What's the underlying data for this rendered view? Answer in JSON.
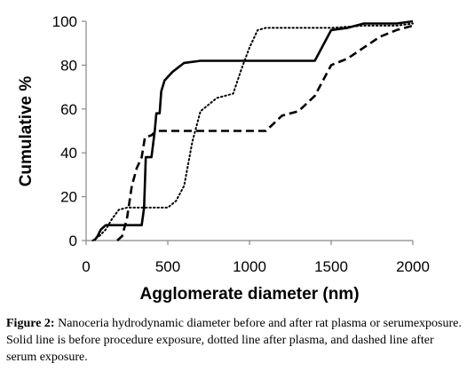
{
  "chart_data": {
    "type": "line",
    "title": "",
    "xlabel": "Agglomerate diameter (nm)",
    "ylabel": "Cumulative %",
    "xlim": [
      0,
      2000
    ],
    "ylim": [
      0,
      100
    ],
    "x_ticks": [
      "0",
      "500",
      "1000",
      "1500",
      "2000"
    ],
    "y_ticks": [
      "0",
      "20",
      "40",
      "60",
      "80",
      "100"
    ],
    "grid": false,
    "legend": "none",
    "series": [
      {
        "style": "solid",
        "color": "#000000",
        "points": [
          [
            50,
            0
          ],
          [
            70,
            2
          ],
          [
            90,
            5
          ],
          [
            120,
            7
          ],
          [
            160,
            7
          ],
          [
            200,
            7
          ],
          [
            250,
            7
          ],
          [
            300,
            7
          ],
          [
            340,
            7
          ],
          [
            355,
            15
          ],
          [
            365,
            38
          ],
          [
            400,
            38
          ],
          [
            420,
            50
          ],
          [
            430,
            58
          ],
          [
            450,
            58
          ],
          [
            460,
            68
          ],
          [
            480,
            73
          ],
          [
            530,
            77
          ],
          [
            600,
            81
          ],
          [
            700,
            82
          ],
          [
            800,
            82
          ],
          [
            1000,
            82
          ],
          [
            1200,
            82
          ],
          [
            1400,
            82
          ],
          [
            1500,
            96
          ],
          [
            1600,
            97
          ],
          [
            1700,
            99
          ],
          [
            1800,
            99
          ],
          [
            1900,
            99
          ],
          [
            2000,
            100
          ]
        ]
      },
      {
        "style": "dotted",
        "color": "#000000",
        "points": [
          [
            40,
            0
          ],
          [
            80,
            2
          ],
          [
            120,
            5
          ],
          [
            160,
            10
          ],
          [
            200,
            14
          ],
          [
            250,
            15
          ],
          [
            300,
            15
          ],
          [
            400,
            15
          ],
          [
            500,
            15
          ],
          [
            550,
            18
          ],
          [
            600,
            25
          ],
          [
            650,
            45
          ],
          [
            700,
            59
          ],
          [
            750,
            62
          ],
          [
            800,
            65
          ],
          [
            900,
            67
          ],
          [
            950,
            78
          ],
          [
            1000,
            88
          ],
          [
            1050,
            96
          ],
          [
            1100,
            97
          ],
          [
            1300,
            97
          ],
          [
            1500,
            97
          ],
          [
            1700,
            98
          ],
          [
            1900,
            98
          ],
          [
            2000,
            99
          ]
        ]
      },
      {
        "style": "dashed",
        "color": "#000000",
        "points": [
          [
            190,
            0
          ],
          [
            220,
            2
          ],
          [
            250,
            10
          ],
          [
            280,
            25
          ],
          [
            310,
            33
          ],
          [
            340,
            38
          ],
          [
            360,
            47
          ],
          [
            400,
            48
          ],
          [
            430,
            50
          ],
          [
            500,
            50
          ],
          [
            600,
            50
          ],
          [
            800,
            50
          ],
          [
            1000,
            50
          ],
          [
            1100,
            50
          ],
          [
            1200,
            57
          ],
          [
            1300,
            59
          ],
          [
            1400,
            66
          ],
          [
            1500,
            80
          ],
          [
            1600,
            83
          ],
          [
            1700,
            88
          ],
          [
            1800,
            93
          ],
          [
            1900,
            96
          ],
          [
            2000,
            98
          ]
        ]
      }
    ]
  },
  "caption": {
    "label": "Figure 2:",
    "text": " Nanoceria hydrodynamic diameter before and after rat plasma or serumexposure. Solid line is before procedure exposure, dotted line after plasma, and dashed line after serum exposure."
  }
}
